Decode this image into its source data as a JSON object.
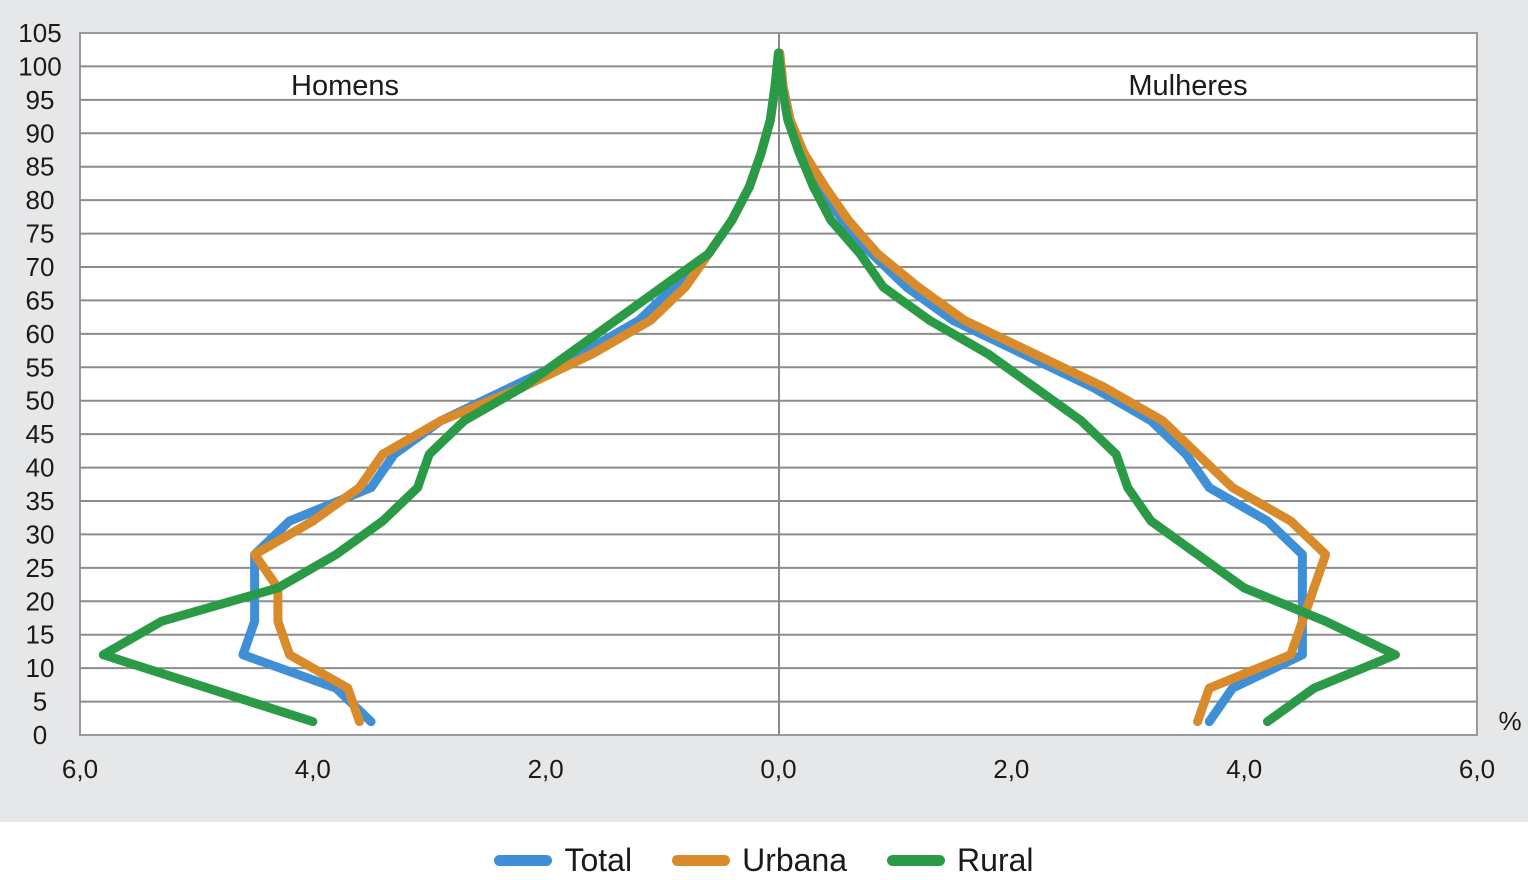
{
  "chart_data": {
    "type": "line",
    "subtype": "population-pyramid",
    "left_label": "Homens",
    "right_label": "Mulheres",
    "x_unit": "%",
    "xlim": [
      -6,
      6
    ],
    "ylim": [
      0,
      105
    ],
    "x_ticks": [
      "6,0",
      "4,0",
      "2,0",
      "0,0",
      "2,0",
      "4,0",
      "6,0"
    ],
    "y_ticks": [
      "0",
      "5",
      "10",
      "15",
      "20",
      "25",
      "30",
      "35",
      "40",
      "45",
      "50",
      "55",
      "60",
      "65",
      "70",
      "75",
      "80",
      "85",
      "90",
      "95",
      "100",
      "105"
    ],
    "grid": true,
    "legend_position": "bottom",
    "ages": [
      2,
      7,
      12,
      17,
      22,
      27,
      32,
      37,
      42,
      47,
      52,
      57,
      62,
      67,
      72,
      77,
      82,
      87,
      92,
      97,
      102
    ],
    "series": [
      {
        "name": "Total",
        "color": "#3e8fd6",
        "men": [
          3.5,
          3.8,
          4.6,
          4.5,
          4.5,
          4.5,
          4.2,
          3.5,
          3.3,
          2.9,
          2.3,
          1.7,
          1.2,
          0.9,
          0.6,
          0.4,
          0.25,
          0.15,
          0.07,
          0.03,
          0.0
        ],
        "women": [
          3.7,
          3.9,
          4.5,
          4.5,
          4.5,
          4.5,
          4.2,
          3.7,
          3.5,
          3.2,
          2.7,
          2.1,
          1.5,
          1.1,
          0.8,
          0.55,
          0.35,
          0.2,
          0.1,
          0.04,
          0.01
        ]
      },
      {
        "name": "Urbana",
        "color": "#d98a2b",
        "men": [
          3.6,
          3.7,
          4.2,
          4.3,
          4.3,
          4.5,
          4.0,
          3.6,
          3.4,
          2.9,
          2.2,
          1.6,
          1.1,
          0.8,
          0.6,
          0.4,
          0.25,
          0.15,
          0.07,
          0.03,
          0.0
        ],
        "women": [
          3.6,
          3.7,
          4.4,
          4.5,
          4.6,
          4.7,
          4.4,
          3.9,
          3.6,
          3.3,
          2.8,
          2.2,
          1.6,
          1.2,
          0.85,
          0.6,
          0.4,
          0.22,
          0.1,
          0.04,
          0.01
        ]
      },
      {
        "name": "Rural",
        "color": "#2a9a47",
        "men": [
          4.0,
          4.9,
          5.8,
          5.3,
          4.3,
          3.8,
          3.4,
          3.1,
          3.0,
          2.7,
          2.2,
          1.8,
          1.4,
          1.0,
          0.6,
          0.4,
          0.25,
          0.15,
          0.07,
          0.03,
          0.0
        ],
        "women": [
          4.2,
          4.6,
          5.3,
          4.7,
          4.0,
          3.6,
          3.2,
          3.0,
          2.9,
          2.6,
          2.2,
          1.8,
          1.3,
          0.9,
          0.7,
          0.45,
          0.3,
          0.18,
          0.08,
          0.03,
          0.0
        ]
      }
    ]
  }
}
